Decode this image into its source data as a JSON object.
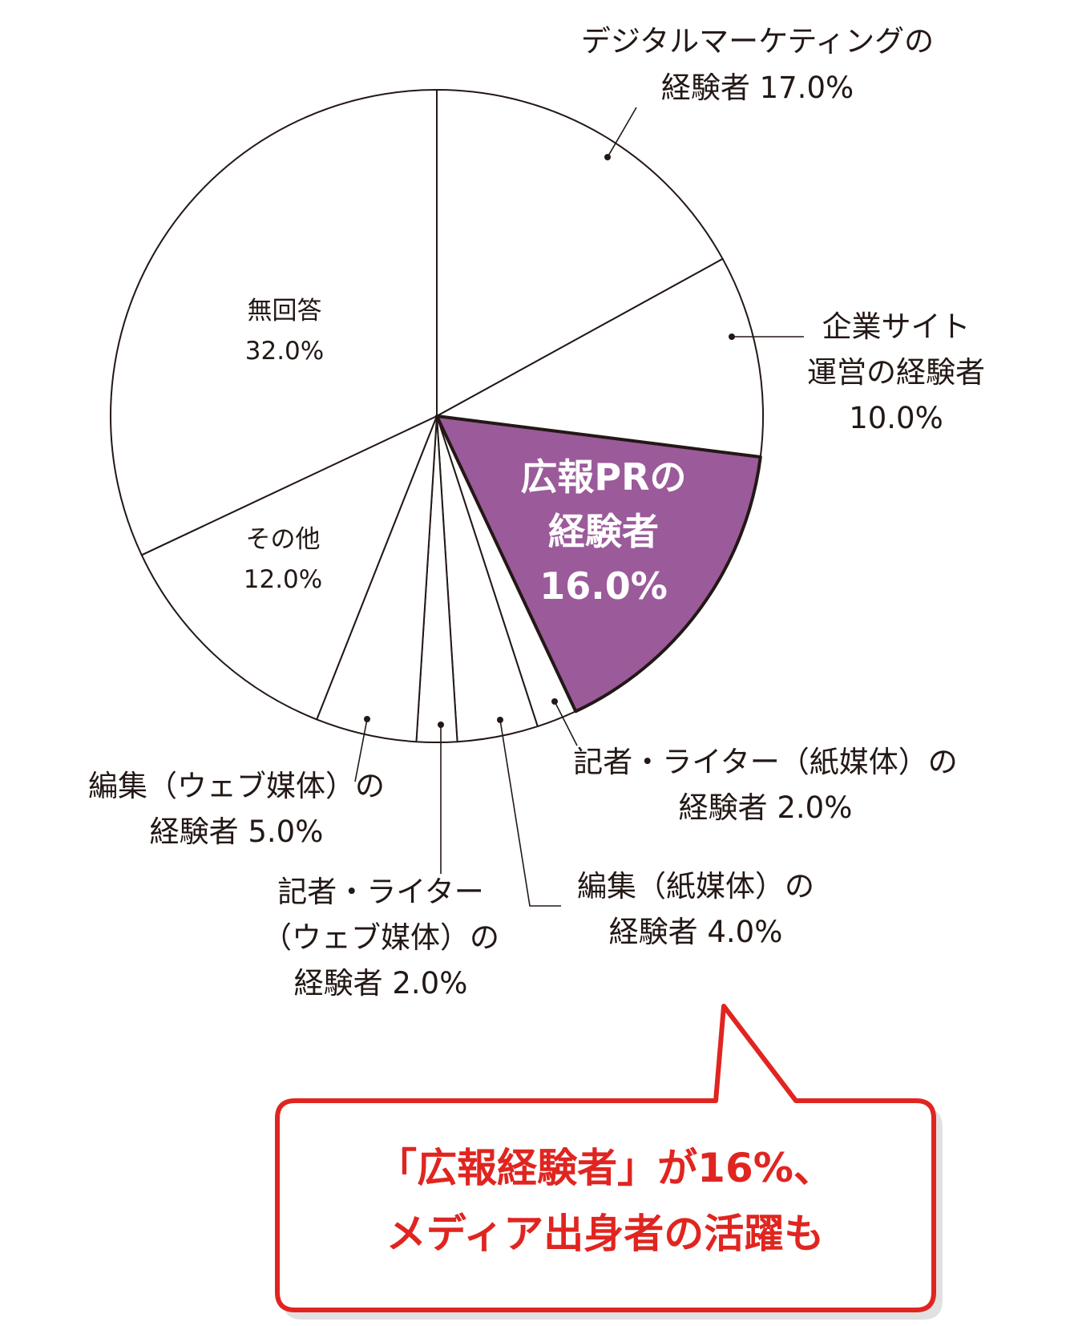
{
  "chart_data": {
    "type": "pie",
    "start_angle_deg": 0,
    "direction": "clockwise",
    "highlight_color": "#9b5a9a",
    "slices": [
      {
        "label": "デジタルマーケティングの経験者",
        "value": 17.0,
        "text_lines": [
          "デジタルマーケティングの",
          "経験者 17.0%"
        ],
        "highlight": false
      },
      {
        "label": "企業サイト運営の経験者",
        "value": 10.0,
        "text_lines": [
          "企業サイト",
          "運営の経験者",
          "10.0%"
        ],
        "highlight": false
      },
      {
        "label": "広報PRの経験者",
        "value": 16.0,
        "text_lines": [
          "広報PRの",
          "経験者",
          "16.0%"
        ],
        "highlight": true
      },
      {
        "label": "記者・ライター（紙媒体）の経験者",
        "value": 2.0,
        "text_lines": [
          "記者・ライター（紙媒体）の",
          "経験者 2.0%"
        ],
        "highlight": false
      },
      {
        "label": "編集（紙媒体）の経験者",
        "value": 4.0,
        "text_lines": [
          "編集（紙媒体）の",
          "経験者 4.0%"
        ],
        "highlight": false
      },
      {
        "label": "記者・ライター（ウェブ媒体）の経験者",
        "value": 2.0,
        "text_lines": [
          "記者・ライター",
          "（ウェブ媒体）の",
          "経験者 2.0%"
        ],
        "highlight": false
      },
      {
        "label": "編集（ウェブ媒体）の経験者",
        "value": 5.0,
        "text_lines": [
          "編集（ウェブ媒体）の",
          "経験者 5.0%"
        ],
        "highlight": false
      },
      {
        "label": "その他",
        "value": 12.0,
        "text_lines": [
          "その他",
          "12.0%"
        ],
        "highlight": false
      },
      {
        "label": "無回答",
        "value": 32.0,
        "text_lines": [
          "無回答",
          "32.0%"
        ],
        "highlight": false
      }
    ]
  },
  "callout": {
    "line1": "「広報経験者」が16%、",
    "line2": "メディア出身者の活躍も",
    "color": "#e02520"
  }
}
